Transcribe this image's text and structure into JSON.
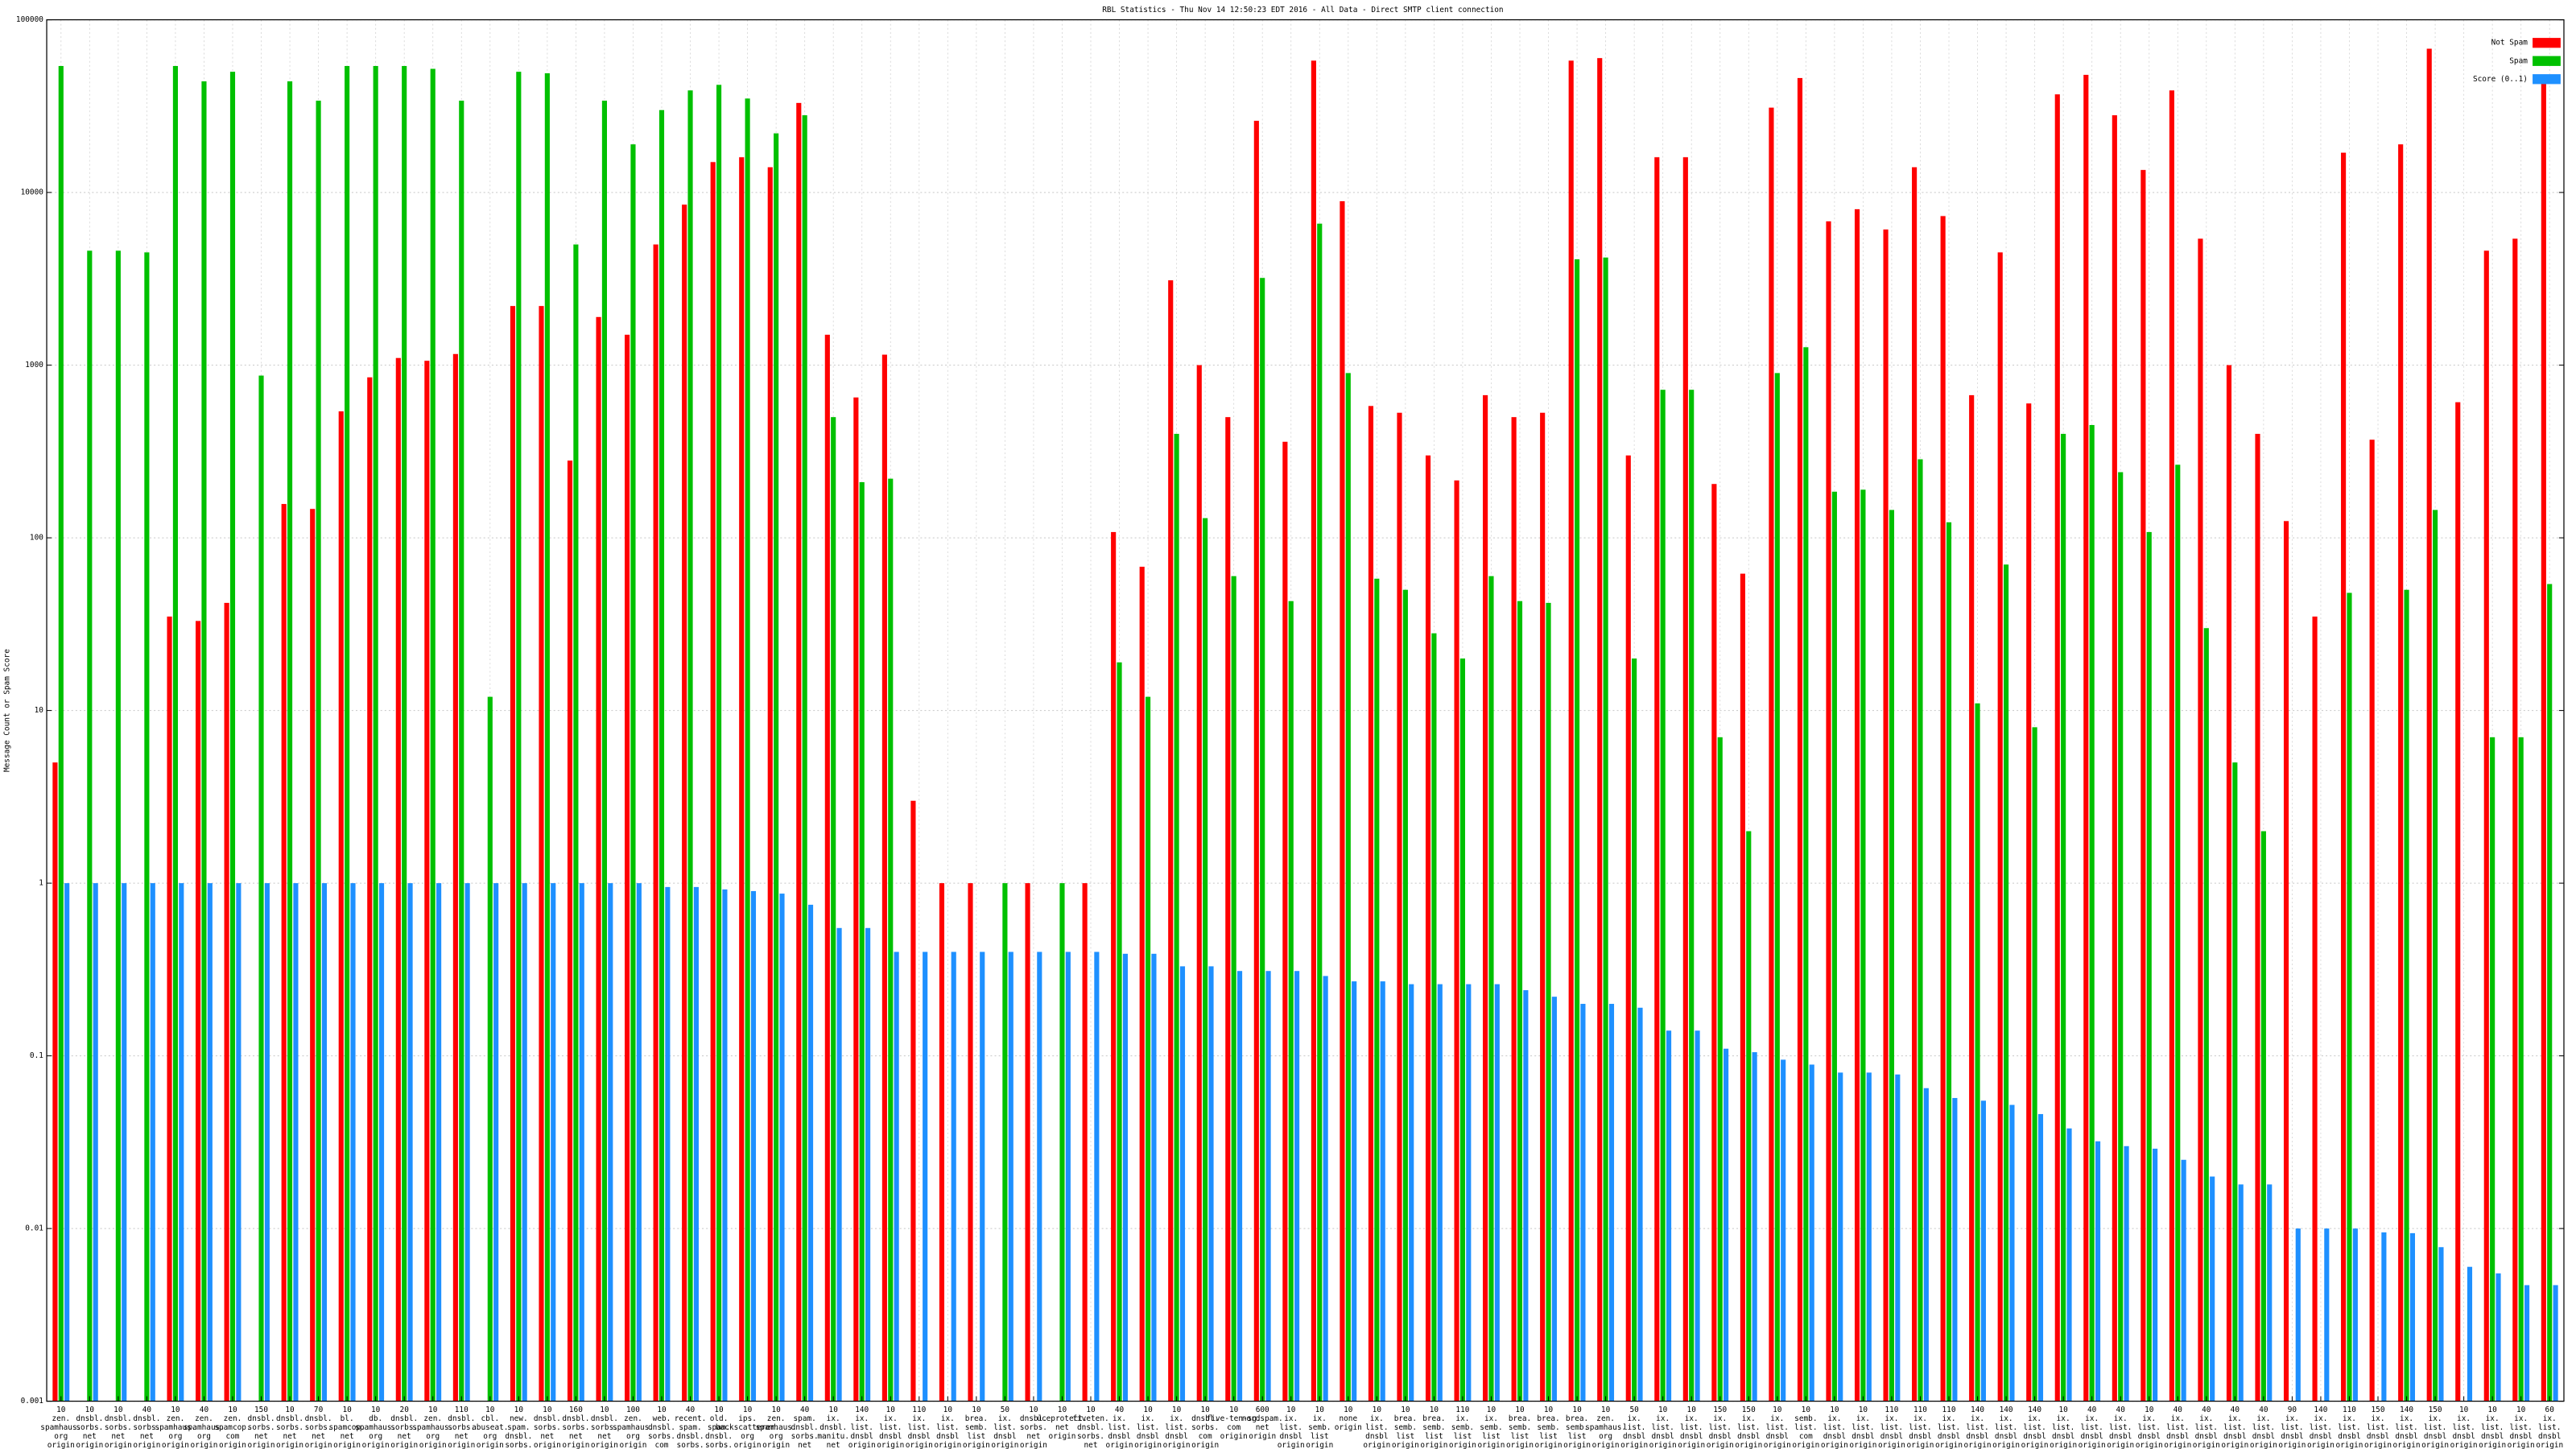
{
  "chart_data": {
    "type": "bar",
    "title": "RBL Statistics - Thu Nov 14 12:50:23 EDT 2016 - All Data - Direct SMTP client connection",
    "y_label": "Message Count or Spam Score",
    "log_scale": true,
    "grid": true,
    "legend": "top-right",
    "ylim": [
      0.001,
      100000
    ],
    "yticks": [
      0.001,
      0.01,
      0.1,
      1,
      10,
      100,
      1000,
      10000,
      100000
    ],
    "categories": [
      "10\nzen.\nspamhaus.\norg\norigin",
      "10\ndnsbl.\nsorbs.\nnet\norigin",
      "10\ndnsbl.\nsorbs.\nnet\norigin",
      "40\ndnsbl.\nsorbs.\nnet\norigin",
      "10\nzen.\nspamhaus.\norg\norigin",
      "40\nzen.\nspamhaus.\norg\norigin",
      "10\nzen.\nspamcop.\ncom\norigin",
      "150\ndnsbl.\nsorbs.\nnet\norigin",
      "10\ndnsbl.\nsorbs.\nnet\norigin",
      "70\ndnsbl.\nsorbs.\nnet\norigin",
      "10\nbl.\nspamcop.\nnet\norigin",
      "10\ndb.\nspamhaus.\norg\norigin",
      "20\ndnsbl.\nsorbs.\nnet\norigin",
      "10\nzen.\nspamhaus.\norg\norigin",
      "110\ndnsbl.\nsorbs.\nnet\norigin",
      "10\ncbl.\nabuseat.\norg\norigin",
      "10\nnew.\nspam.\ndnsbl.\nsorbs.\nnet\norigin",
      "10\ndnsbl.\nsorbs.\nnet\norigin",
      "160\ndnsbl.\nsorbs.\nnet\norigin",
      "10\ndnsbl.\nsorbs.\nnet\norigin",
      "100\nzen.\nspamhaus.\norg\norigin",
      "10\nweb.\ndnsbl.\nsorbs.\ncom\norigin",
      "40\nrecent.\nspam.\ndnsbl.\nsorbs.\nnet\norigin",
      "10\nold.\nspam.\ndnsbl.\nsorbs.\nnet\norigin",
      "10\nips.\nbackscatterer.\norg\norigin",
      "10\nzen.\nspamhaus.\norg\norigin",
      "40\nspam.\ndnsbl.\nsorbs.\nnet\norigin",
      "10\nix.\ndnsbl.\nmanitu.\nnet\norigin",
      "140\nix.\nlist.\ndnsbl\norigin",
      "10\nix.\nlist.\ndnsbl\norigin",
      "110\nix.\nlist.\ndnsbl\norigin",
      "10\nix.\nlist.\ndnsbl\norigin",
      "10\nbrea.\nsemb.\nlist\norigin",
      "50\nix.\nlist.\ndnsbl\norigin",
      "10\ndnsbl.\nsorbs.\nnet\norigin",
      "10\nuceprotect.\nnet\norigin",
      "10\nfiveten.\ndnsbl.\nsorbs.\nnet\norigin",
      "40\nix.\nlist.\ndnsbl\norigin",
      "10\nix.\nlist.\ndnsbl\norigin",
      "10\nix.\nlist.\ndnsbl\norigin",
      "10\ndnsbl.\nsorbs.\ncom\norigin",
      "10\nfive-ten-sg.\ncom\norigin",
      "600\nnordspam.\nnet\norigin",
      "10\nix.\nlist.\ndnsbl\norigin",
      "10\nix.\nsemb.\nlist\norigin",
      "10\nnone\norigin",
      "10\nix.\nlist.\ndnsbl\norigin",
      "10\nbrea.\nsemb.\nlist\norigin",
      "10\nbrea.\nsemb.\nlist\norigin",
      "110\nix.\nsemb.\nlist\norigin",
      "10\nix.\nsemb.\nlist\norigin",
      "10\nbrea.\nsemb.\nlist\norigin",
      "10\nbrea.\nsemb.\nlist\norigin",
      "10\nbrea.\nsemb.\nlist\norigin",
      "10\nzen.\nspamhaus.\norg\norigin",
      "50\nix.\nlist.\ndnsbl\norigin",
      "10\nix.\nlist.\ndnsbl\norigin",
      "10\nix.\nlist.\ndnsbl\norigin",
      "150\nix.\nlist.\ndnsbl\norigin",
      "150\nix.\nlist.\ndnsbl\norigin",
      "10\nix.\nlist.\ndnsbl\norigin",
      "10\nsemb.\nlist.\ncom\norigin",
      "10\nix.\nlist.\ndnsbl\norigin",
      "10\nix.\nlist.\ndnsbl\norigin",
      "110\nix.\nlist.\ndnsbl\norigin",
      "110\nix.\nlist.\ndnsbl\norigin",
      "110\nix.\nlist.\ndnsbl\norigin",
      "140\nix.\nlist.\ndnsbl\norigin",
      "140\nix.\nlist.\ndnsbl\norigin",
      "140\nix.\nlist.\ndnsbl\norigin",
      "10\nix.\nlist.\ndnsbl\norigin",
      "40\nix.\nlist.\ndnsbl\norigin",
      "40\nix.\nlist.\ndnsbl\norigin",
      "10\nix.\nlist.\ndnsbl\norigin",
      "40\nix.\nlist.\ndnsbl\norigin",
      "40\nix.\nlist.\ndnsbl\norigin",
      "40\nix.\nlist.\ndnsbl\norigin",
      "40\nix.\nlist.\ndnsbl\norigin",
      "90\nix.\nlist.\ndnsbl\norigin",
      "140\nix.\nlist.\ndnsbl\norigin",
      "110\nix.\nlist.\ndnsbl\norigin",
      "150\nix.\nlist.\ndnsbl\norigin",
      "140\nix.\nlist.\ndnsbl\norigin",
      "150\nix.\nlist.\ndnsbl\norigin",
      "10\nix.\nlist.\ndnsbl\norigin",
      "10\nix.\nlist.\ndnsbl\norigin",
      "10\nix.\nlist.\ndnsbl\norigin",
      "60\nix.\nlist.\ndnsbl\norigin"
    ],
    "series": [
      {
        "name": "Not Spam",
        "color": "#ff0000",
        "values": [
          5,
          null,
          null,
          null,
          35,
          33,
          42,
          null,
          157,
          147,
          540,
          850,
          1100,
          1060,
          1160,
          null,
          2200,
          2200,
          280,
          1900,
          1500,
          5000,
          8500,
          15000,
          16000,
          14000,
          33000,
          1500,
          650,
          1150,
          3,
          1,
          1,
          null,
          1,
          null,
          1,
          108,
          68,
          3100,
          1000,
          500,
          26000,
          360,
          58000,
          8900,
          580,
          530,
          300,
          215,
          670,
          500,
          530,
          58000,
          60000,
          300,
          16000,
          16000,
          205,
          62,
          31000,
          46000,
          6800,
          8000,
          6100,
          14000,
          7300,
          670,
          4500,
          600,
          37000,
          48000,
          28000,
          13500,
          39000,
          5400,
          1000,
          400,
          125,
          35,
          17000,
          370,
          19000,
          68000,
          610,
          4600,
          5400,
          43000
        ]
      },
      {
        "name": "Spam",
        "color": "#00c000",
        "values": [
          54000,
          4600,
          4600,
          4500,
          54000,
          44000,
          50000,
          870,
          44000,
          34000,
          54000,
          54000,
          54000,
          52000,
          34000,
          12,
          50000,
          49000,
          5000,
          34000,
          19000,
          30000,
          39000,
          42000,
          35000,
          22000,
          28000,
          500,
          210,
          220,
          null,
          null,
          null,
          1,
          null,
          1,
          null,
          19,
          12,
          400,
          130,
          60,
          3200,
          43,
          6600,
          900,
          58,
          50,
          28,
          20,
          60,
          43,
          42,
          4100,
          4200,
          20,
          720,
          720,
          7,
          2,
          900,
          1270,
          185,
          190,
          145,
          285,
          123,
          11,
          70,
          8,
          400,
          450,
          240,
          108,
          265,
          30,
          5,
          2,
          null,
          null,
          48,
          null,
          50,
          145,
          null,
          7,
          7,
          54
        ]
      },
      {
        "name": "Score (0..1)",
        "color": "#1e90ff",
        "values": [
          1,
          1,
          1,
          1,
          1,
          1,
          1,
          1,
          1,
          1,
          1,
          1,
          1,
          1,
          1,
          1,
          1,
          1,
          1,
          1,
          1,
          0.95,
          0.95,
          0.92,
          0.9,
          0.87,
          0.75,
          0.55,
          0.55,
          0.4,
          0.4,
          0.4,
          0.4,
          0.4,
          0.4,
          0.4,
          0.4,
          0.39,
          0.39,
          0.33,
          0.33,
          0.31,
          0.31,
          0.31,
          0.29,
          0.27,
          0.27,
          0.26,
          0.26,
          0.26,
          0.26,
          0.24,
          0.22,
          0.2,
          0.2,
          0.19,
          0.14,
          0.14,
          0.11,
          0.105,
          0.095,
          0.089,
          0.08,
          0.08,
          0.078,
          0.065,
          0.057,
          0.055,
          0.052,
          0.046,
          0.038,
          0.032,
          0.03,
          0.029,
          0.025,
          0.02,
          0.018,
          0.018,
          0.01,
          0.01,
          0.01,
          0.0095,
          0.0094,
          0.0078,
          0.006,
          0.0055,
          0.0047,
          0.0047
        ]
      }
    ]
  }
}
